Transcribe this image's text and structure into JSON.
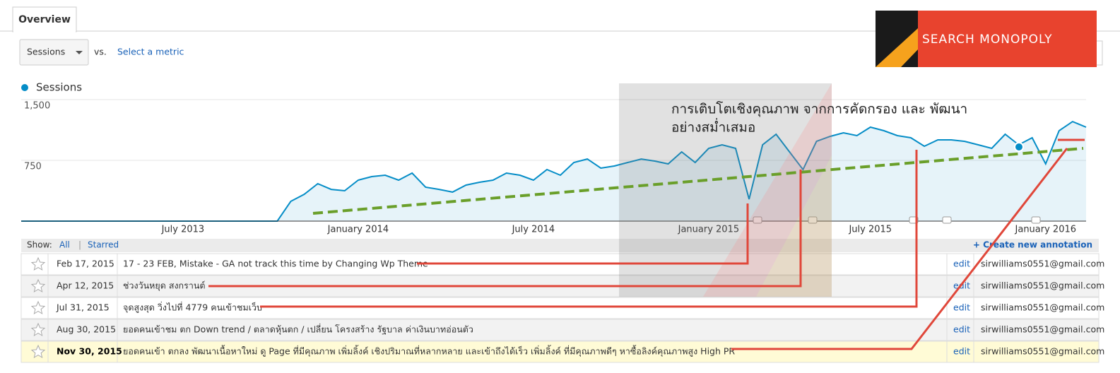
{
  "tabs": [
    "Overview"
  ],
  "metric_selector": {
    "selected": "Sessions",
    "vs": "vs.",
    "link": "Select a metric"
  },
  "logo": "SEARCH MONOPOLY",
  "chart_data": {
    "type": "line",
    "series": [
      {
        "name": "Sessions",
        "color": "#058dc7",
        "values": [
          0,
          0,
          0,
          0,
          0,
          0,
          0,
          0,
          0,
          0,
          0,
          0,
          0,
          0,
          0,
          0,
          0,
          0,
          0,
          0,
          244,
          331,
          462,
          392,
          375,
          506,
          549,
          567,
          506,
          593,
          419,
          392,
          358,
          445,
          480,
          506,
          593,
          567,
          506,
          637,
          567,
          724,
          767,
          654,
          680,
          724,
          767,
          741,
          706,
          855,
          724,
          898,
          942,
          898,
          270,
          942,
          1073,
          855,
          637,
          985,
          1046,
          1090,
          1055,
          1160,
          1116,
          1055,
          1029,
          924,
          1003,
          1003,
          985,
          942,
          898,
          1073,
          942,
          1029,
          706,
          1116,
          1229,
          1160
        ]
      }
    ],
    "categories": [
      null,
      null,
      null,
      null,
      null,
      null,
      null,
      null,
      null,
      null,
      null,
      null,
      "July 2013",
      null,
      null,
      null,
      null,
      null,
      null,
      null,
      null,
      null,
      null,
      null,
      null,
      "January 2014",
      null,
      null,
      null,
      null,
      null,
      null,
      null,
      null,
      null,
      null,
      null,
      null,
      "July 2014",
      null,
      null,
      null,
      null,
      null,
      null,
      null,
      null,
      null,
      null,
      null,
      null,
      "January 2015",
      null,
      null,
      null,
      null,
      null,
      null,
      null,
      null,
      null,
      null,
      null,
      "July 2015",
      null,
      null,
      null,
      null,
      null,
      null,
      null,
      null,
      null,
      null,
      null,
      null,
      "January 2016",
      null,
      null,
      null
    ],
    "ylim": [
      0,
      1500
    ],
    "yticks": [
      {
        "value": 1500,
        "label": "1,500"
      },
      750
    ],
    "grid": true
  },
  "overlay_text": [
    "การเติบโตเชิงคุณภาพ จากการคัดกรอง และ พัฒนา",
    "อย่างสม่ำเสมอ"
  ],
  "annotations": {
    "show": "Show:",
    "filters": [
      "All",
      "Starred"
    ],
    "create": "+ Create new annotation",
    "rows": [
      {
        "date": "Feb 17, 2015",
        "text": "17 - 23 FEB, Mistake - GA not track this time by Changing Wp Theme",
        "action": "edit",
        "email": "sirwilliams0551@gmail.com"
      },
      {
        "date": "Apr 12, 2015",
        "text": "ช่วงวันหยุด สงกรานต์",
        "action": "edit",
        "email": "sirwilliams0551@gmail.com"
      },
      {
        "date": "Jul 31, 2015",
        "text": "จุดสูงสุด วิ่งไปที่ 4779 คนเข้าชมเว็บ",
        "action": "edit",
        "email": "sirwilliams0551@gmail.com"
      },
      {
        "date": "Aug 30, 2015",
        "text": "ยอดคนเข้าชม ตก Down trend / ตลาดหุ้นตก / เปลี่ยน โครงสร้าง รัฐบาล ค่าเงินบาทอ่อนตัว",
        "action": "edit",
        "email": "sirwilliams0551@gmail.com"
      },
      {
        "date": "Nov 30, 2015",
        "text": "ยอดคนเข้า ตกลง พัฒนาเนื้อหาใหม่ ดู Page ที่มีคุณภาพ เพิ่มลิ้งค์ เชิงปริมาณที่หลากหลาย และเข้าถึงได้เร็ว เพิ่มลิ้งค์ ที่มีคุณภาพดีๆ หาซื้อลิงค์คุณภาพสูง High PR",
        "action": "edit",
        "email": "sirwilliams0551@gmail.com"
      }
    ]
  }
}
